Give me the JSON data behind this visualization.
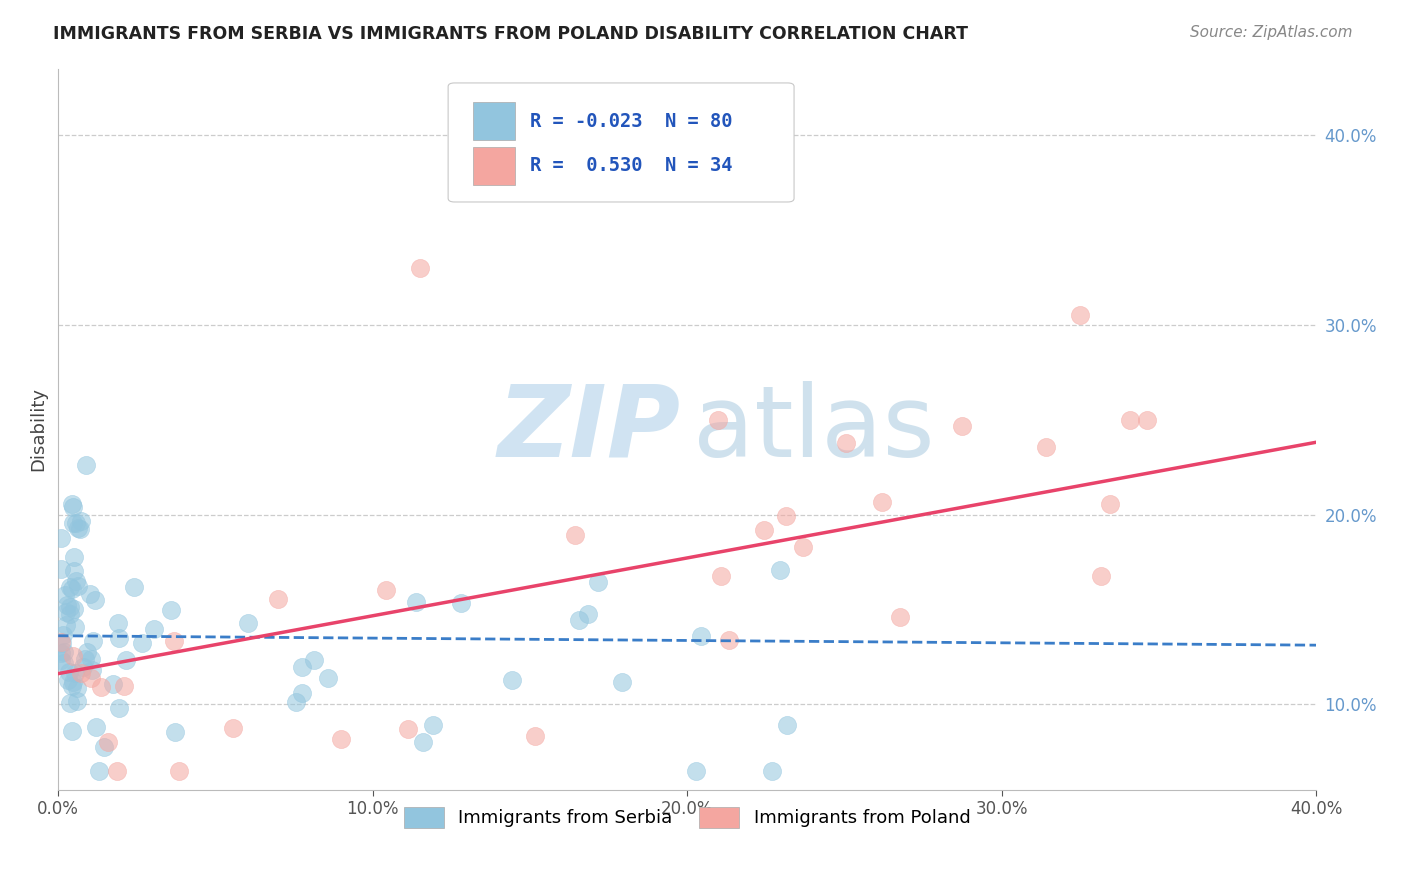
{
  "title": "IMMIGRANTS FROM SERBIA VS IMMIGRANTS FROM POLAND DISABILITY CORRELATION CHART",
  "source": "Source: ZipAtlas.com",
  "ylabel": "Disability",
  "xlim": [
    0.0,
    0.4
  ],
  "ylim": [
    0.055,
    0.435
  ],
  "xticks": [
    0.0,
    0.1,
    0.2,
    0.3,
    0.4
  ],
  "yticks": [
    0.1,
    0.2,
    0.3,
    0.4
  ],
  "xtick_labels": [
    "0.0%",
    "10.0%",
    "20.0%",
    "30.0%",
    "40.0%"
  ],
  "ytick_labels": [
    "10.0%",
    "20.0%",
    "30.0%",
    "40.0%"
  ],
  "serbia_color": "#92c5de",
  "poland_color": "#f4a6a0",
  "serbia_edge": "#5a9dc8",
  "poland_edge": "#e8736a",
  "serbia_R": -0.023,
  "serbia_N": 80,
  "poland_R": 0.53,
  "poland_N": 34,
  "legend_serbia_label": "Immigrants from Serbia",
  "legend_poland_label": "Immigrants from Poland",
  "serbia_trend_color": "#3a7dc8",
  "poland_trend_color": "#e8436a",
  "grid_color": "#cccccc",
  "title_color": "#222222",
  "source_color": "#888888",
  "ytick_color": "#6699cc",
  "xtick_color": "#555555",
  "watermark_zip_color": "#c8dff0",
  "watermark_atlas_color": "#c0d8e8"
}
